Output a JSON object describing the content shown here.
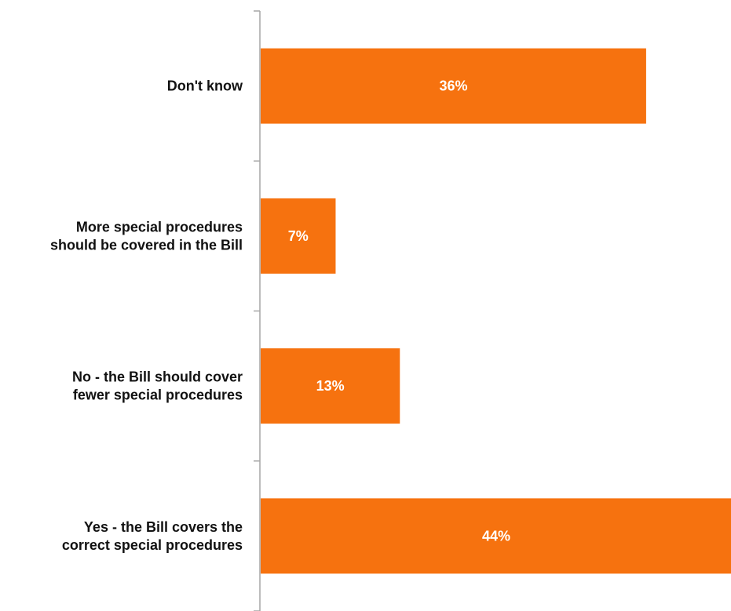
{
  "chart_data": {
    "type": "bar",
    "orientation": "horizontal",
    "categories": [
      [
        "Don't know"
      ],
      [
        "More special procedures",
        "should be covered in the Bill"
      ],
      [
        "No - the Bill should cover",
        "fewer special procedures"
      ],
      [
        "Yes - the Bill covers the",
        "correct special procedures"
      ]
    ],
    "values": [
      36,
      7,
      13,
      44
    ],
    "value_labels": [
      "36%",
      "7%",
      "13%",
      "44%"
    ],
    "title": "",
    "xlabel": "",
    "ylabel": "",
    "xlim": [
      0,
      44
    ],
    "grid": false,
    "bar_color": "#F6720F",
    "axis_color": "#A6A6A6"
  }
}
